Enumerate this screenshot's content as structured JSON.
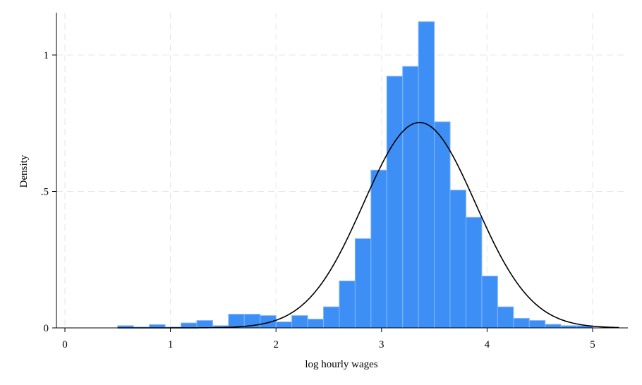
{
  "chart_data": {
    "type": "bar",
    "subtype": "histogram",
    "title": "",
    "xlabel": "log hourly wages",
    "ylabel": "Density",
    "xlim": [
      -0.1,
      5.3
    ],
    "ylim": [
      0,
      1.13
    ],
    "x_ticks": [
      0,
      1,
      2,
      3,
      4,
      5
    ],
    "x_tick_labels": [
      "0",
      "1",
      "2",
      "3",
      "4",
      "5"
    ],
    "y_ticks": [
      0,
      0.5,
      1
    ],
    "y_tick_labels": [
      "0",
      ".5",
      "1"
    ],
    "grid": true,
    "bin_start": 0.5,
    "bin_width": 0.15,
    "values": [
      0.008,
      0.003,
      0.012,
      0.003,
      0.018,
      0.027,
      0.008,
      0.05,
      0.05,
      0.045,
      0.022,
      0.045,
      0.032,
      0.077,
      0.172,
      0.327,
      0.578,
      0.922,
      0.958,
      1.122,
      0.755,
      0.505,
      0.405,
      0.19,
      0.077,
      0.035,
      0.027,
      0.013,
      0.008,
      0.008
    ],
    "bar_color": "#3d8ff5",
    "bar_edge_color": "#7fb6ff",
    "overlay": {
      "type": "normal-density",
      "mean": 3.36,
      "sd": 0.53,
      "x_range": [
        0.5,
        5.25
      ],
      "color": "#000000"
    }
  }
}
